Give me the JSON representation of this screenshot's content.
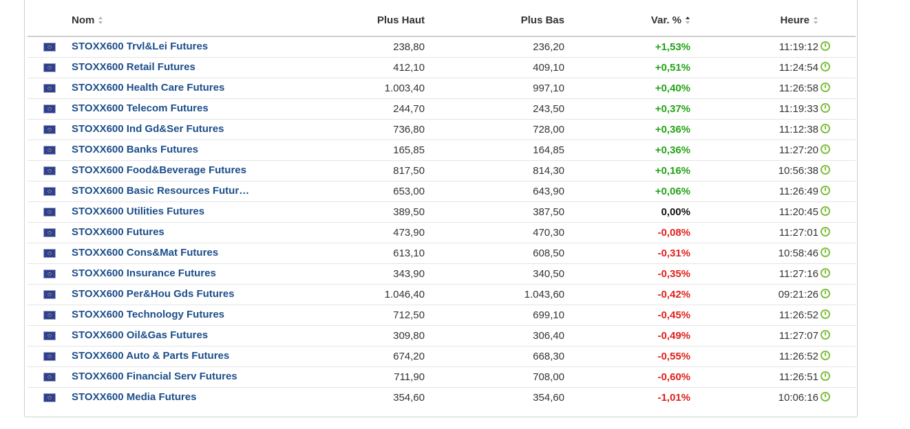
{
  "table": {
    "headers": {
      "name": "Nom",
      "high": "Plus Haut",
      "low": "Plus Bas",
      "change": "Var. %",
      "time": "Heure"
    },
    "rows": [
      {
        "flag_icon": "eu-flag-icon",
        "name": "STOXX600 Trvl&Lei Futures",
        "high": "238,80",
        "low": "236,20",
        "change": "+1,53%",
        "trend": "up",
        "time": "11:19:12"
      },
      {
        "flag_icon": "eu-flag-icon",
        "name": "STOXX600 Retail Futures",
        "high": "412,10",
        "low": "409,10",
        "change": "+0,51%",
        "trend": "up",
        "time": "11:24:54"
      },
      {
        "flag_icon": "eu-flag-icon",
        "name": "STOXX600 Health Care Futures",
        "high": "1.003,40",
        "low": "997,10",
        "change": "+0,40%",
        "trend": "up",
        "time": "11:26:58"
      },
      {
        "flag_icon": "eu-flag-icon",
        "name": "STOXX600 Telecom Futures",
        "high": "244,70",
        "low": "243,50",
        "change": "+0,37%",
        "trend": "up",
        "time": "11:19:33"
      },
      {
        "flag_icon": "eu-flag-icon",
        "name": "STOXX600 Ind Gd&Ser Futures",
        "high": "736,80",
        "low": "728,00",
        "change": "+0,36%",
        "trend": "up",
        "time": "11:12:38"
      },
      {
        "flag_icon": "eu-flag-icon",
        "name": "STOXX600 Banks Futures",
        "high": "165,85",
        "low": "164,85",
        "change": "+0,36%",
        "trend": "up",
        "time": "11:27:20"
      },
      {
        "flag_icon": "eu-flag-icon",
        "name": "STOXX600 Food&Beverage Futures",
        "high": "817,50",
        "low": "814,30",
        "change": "+0,16%",
        "trend": "up",
        "time": "10:56:38"
      },
      {
        "flag_icon": "eu-flag-icon",
        "name": "STOXX600 Basic Resources Futur…",
        "high": "653,00",
        "low": "643,90",
        "change": "+0,06%",
        "trend": "up",
        "time": "11:26:49"
      },
      {
        "flag_icon": "eu-flag-icon",
        "name": "STOXX600 Utilities Futures",
        "high": "389,50",
        "low": "387,50",
        "change": "0,00%",
        "trend": "flat",
        "time": "11:20:45"
      },
      {
        "flag_icon": "eu-flag-icon",
        "name": "STOXX600 Futures",
        "high": "473,90",
        "low": "470,30",
        "change": "-0,08%",
        "trend": "down",
        "time": "11:27:01"
      },
      {
        "flag_icon": "eu-flag-icon",
        "name": "STOXX600 Cons&Mat Futures",
        "high": "613,10",
        "low": "608,50",
        "change": "-0,31%",
        "trend": "down",
        "time": "10:58:46"
      },
      {
        "flag_icon": "eu-flag-icon",
        "name": "STOXX600 Insurance Futures",
        "high": "343,90",
        "low": "340,50",
        "change": "-0,35%",
        "trend": "down",
        "time": "11:27:16"
      },
      {
        "flag_icon": "eu-flag-icon",
        "name": "STOXX600 Per&Hou Gds Futures",
        "high": "1.046,40",
        "low": "1.043,60",
        "change": "-0,42%",
        "trend": "down",
        "time": "09:21:26"
      },
      {
        "flag_icon": "eu-flag-icon",
        "name": "STOXX600 Technology Futures",
        "high": "712,50",
        "low": "699,10",
        "change": "-0,45%",
        "trend": "down",
        "time": "11:26:52"
      },
      {
        "flag_icon": "eu-flag-icon",
        "name": "STOXX600 Oil&Gas Futures",
        "high": "309,80",
        "low": "306,40",
        "change": "-0,49%",
        "trend": "down",
        "time": "11:27:07"
      },
      {
        "flag_icon": "eu-flag-icon",
        "name": "STOXX600 Auto & Parts Futures",
        "high": "674,20",
        "low": "668,30",
        "change": "-0,55%",
        "trend": "down",
        "time": "11:26:52"
      },
      {
        "flag_icon": "eu-flag-icon",
        "name": "STOXX600 Financial Serv Futures",
        "high": "711,90",
        "low": "708,00",
        "change": "-0,60%",
        "trend": "down",
        "time": "11:26:51"
      },
      {
        "flag_icon": "eu-flag-icon",
        "name": "STOXX600 Media Futures",
        "high": "354,60",
        "low": "354,60",
        "change": "-1,01%",
        "trend": "down",
        "time": "10:06:16"
      }
    ]
  },
  "colors": {
    "up": "#22a314",
    "down": "#e0201a",
    "flat": "#111111",
    "link": "#1c4e8a",
    "clock": "#7fbf3d"
  }
}
